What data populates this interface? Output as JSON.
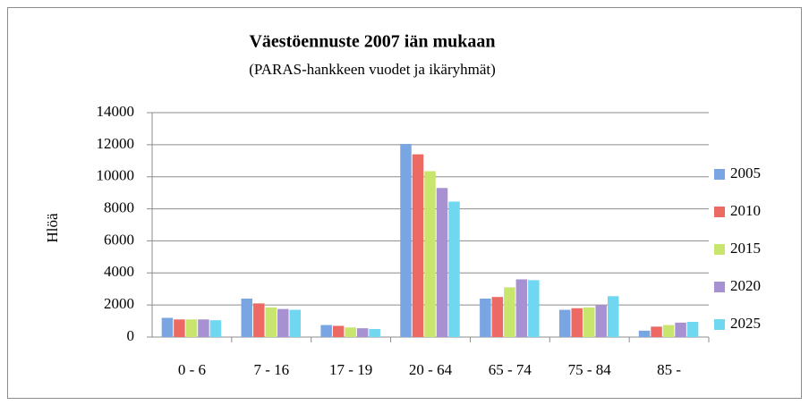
{
  "chart_data": {
    "type": "bar",
    "title": "Väestöennuste 2007 iän mukaan",
    "subtitle": "(PARAS-hankkeen vuodet ja ikäryhmät)",
    "y_label": "Hlöä",
    "categories": [
      "0 - 6",
      "7 - 16",
      "17 - 19",
      "20 - 64",
      "65 - 74",
      "75 - 84",
      "85 -"
    ],
    "series": [
      {
        "name": "2005",
        "color": "#7aa5e3",
        "values": [
          1200,
          2400,
          750,
          12050,
          2400,
          1700,
          400
        ]
      },
      {
        "name": "2010",
        "color": "#ec6a63",
        "values": [
          1100,
          2100,
          700,
          11400,
          2500,
          1800,
          650
        ]
      },
      {
        "name": "2015",
        "color": "#c8e56e",
        "values": [
          1100,
          1850,
          600,
          10350,
          3100,
          1850,
          750
        ]
      },
      {
        "name": "2020",
        "color": "#a891d2",
        "values": [
          1100,
          1750,
          550,
          9300,
          3600,
          2000,
          900
        ]
      },
      {
        "name": "2025",
        "color": "#6fd7f0",
        "values": [
          1050,
          1700,
          500,
          8450,
          3550,
          2550,
          950
        ]
      }
    ],
    "ylim": [
      0,
      14000
    ],
    "yticks": [
      0,
      2000,
      4000,
      6000,
      8000,
      10000,
      12000,
      14000
    ],
    "grid": true,
    "legend": "right"
  }
}
